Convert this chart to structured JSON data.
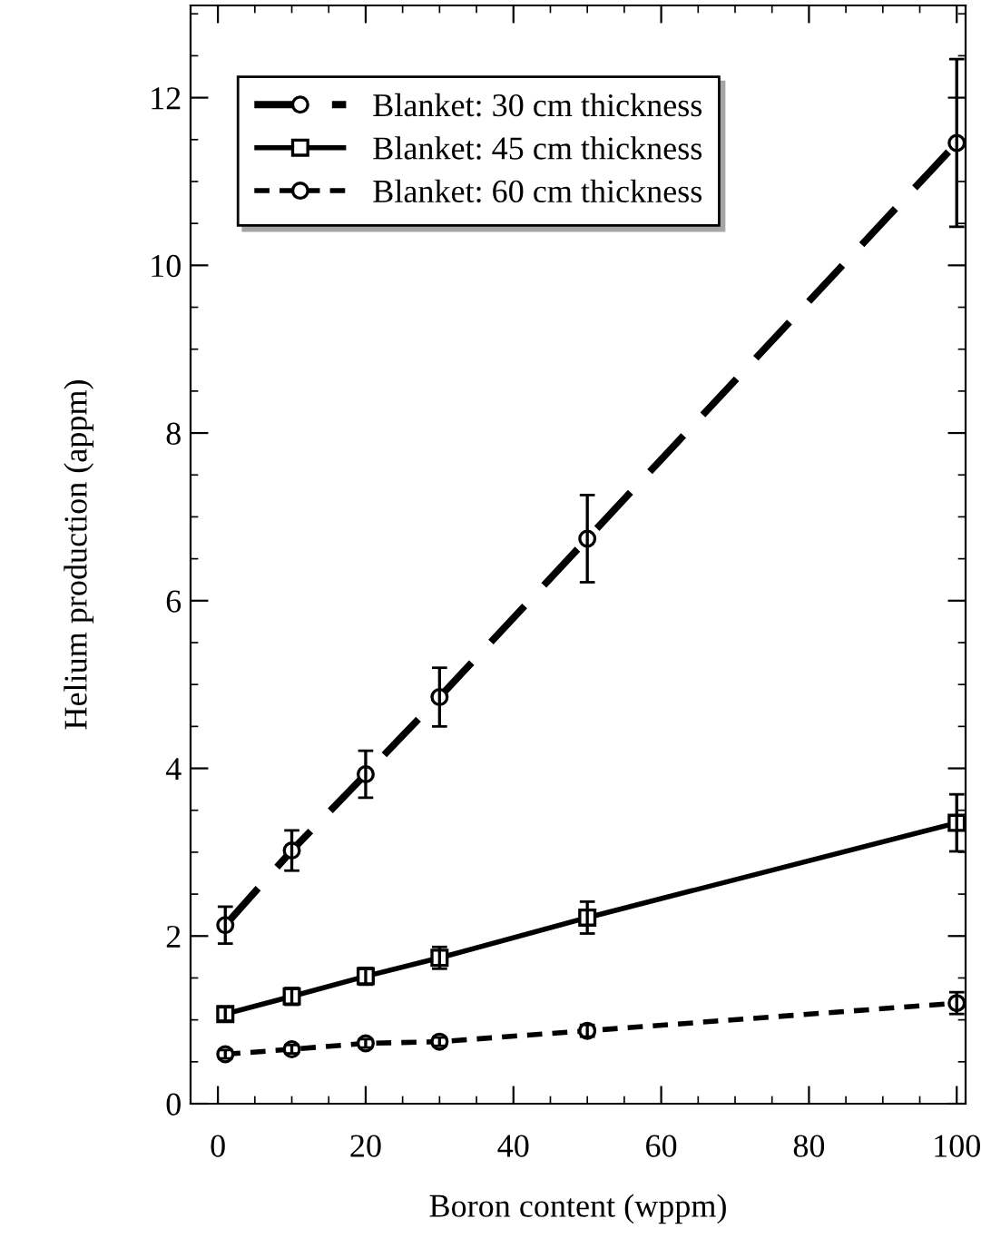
{
  "chart_data": {
    "type": "line",
    "xlabel": "Boron content (wppm)",
    "ylabel": "Helium production (appm)",
    "x": [
      1,
      10,
      20,
      30,
      50,
      100
    ],
    "series": [
      {
        "name": "Blanket: 30 cm thickness",
        "color": "#000000",
        "line_style": "dashed",
        "marker": "circle",
        "values": [
          2.13,
          3.02,
          3.93,
          4.85,
          6.74,
          11.46
        ],
        "errors": [
          0.22,
          0.24,
          0.28,
          0.35,
          0.52,
          1.0
        ]
      },
      {
        "name": "Blanket: 45 cm thickness",
        "color": "#000000",
        "line_style": "solid",
        "marker": "square",
        "values": [
          1.07,
          1.28,
          1.52,
          1.74,
          2.22,
          3.35
        ],
        "errors": [
          0.08,
          0.1,
          0.1,
          0.13,
          0.19,
          0.34
        ]
      },
      {
        "name": "Blanket: 60 cm thickness",
        "color": "#000000",
        "line_style": "dotted",
        "marker": "circle",
        "values": [
          0.59,
          0.65,
          0.72,
          0.74,
          0.87,
          1.2
        ],
        "errors": [
          0.05,
          0.05,
          0.05,
          0.05,
          0.07,
          0.13
        ]
      }
    ],
    "xlim": [
      -3.7,
      101.2
    ],
    "ylim": [
      0,
      13.1
    ],
    "xticks": [
      0,
      {
        "value": 5,
        "label": null
      },
      {
        "value": 10,
        "label": null
      },
      {
        "value": 15,
        "label": null
      },
      20,
      {
        "value": 25,
        "label": null
      },
      {
        "value": 30,
        "label": null
      },
      {
        "value": 35,
        "label": null
      },
      40,
      {
        "value": 45,
        "label": null
      },
      {
        "value": 50,
        "label": null
      },
      {
        "value": 55,
        "label": null
      },
      60,
      {
        "value": 65,
        "label": null
      },
      {
        "value": 70,
        "label": null
      },
      {
        "value": 75,
        "label": null
      },
      80,
      {
        "value": 85,
        "label": null
      },
      {
        "value": 90,
        "label": null
      },
      {
        "value": 95,
        "label": null
      },
      100
    ],
    "yticks": [
      0,
      {
        "value": 0.5,
        "label": null
      },
      {
        "value": 1,
        "label": null
      },
      {
        "value": 1.5,
        "label": null
      },
      2,
      {
        "value": 2.5,
        "label": null
      },
      {
        "value": 3,
        "label": null
      },
      {
        "value": 3.5,
        "label": null
      },
      4,
      {
        "value": 4.5,
        "label": null
      },
      {
        "value": 5,
        "label": null
      },
      {
        "value": 5.5,
        "label": null
      },
      6,
      {
        "value": 6.5,
        "label": null
      },
      {
        "value": 7,
        "label": null
      },
      {
        "value": 7.5,
        "label": null
      },
      8,
      {
        "value": 8.5,
        "label": null
      },
      {
        "value": 9,
        "label": null
      },
      {
        "value": 9.5,
        "label": null
      },
      10,
      {
        "value": 10.5,
        "label": null
      },
      {
        "value": 11,
        "label": null
      },
      {
        "value": 11.5,
        "label": null
      },
      12,
      {
        "value": 12.5,
        "label": null
      },
      {
        "value": 13,
        "label": null
      }
    ],
    "grid": false,
    "legend": "top left"
  }
}
